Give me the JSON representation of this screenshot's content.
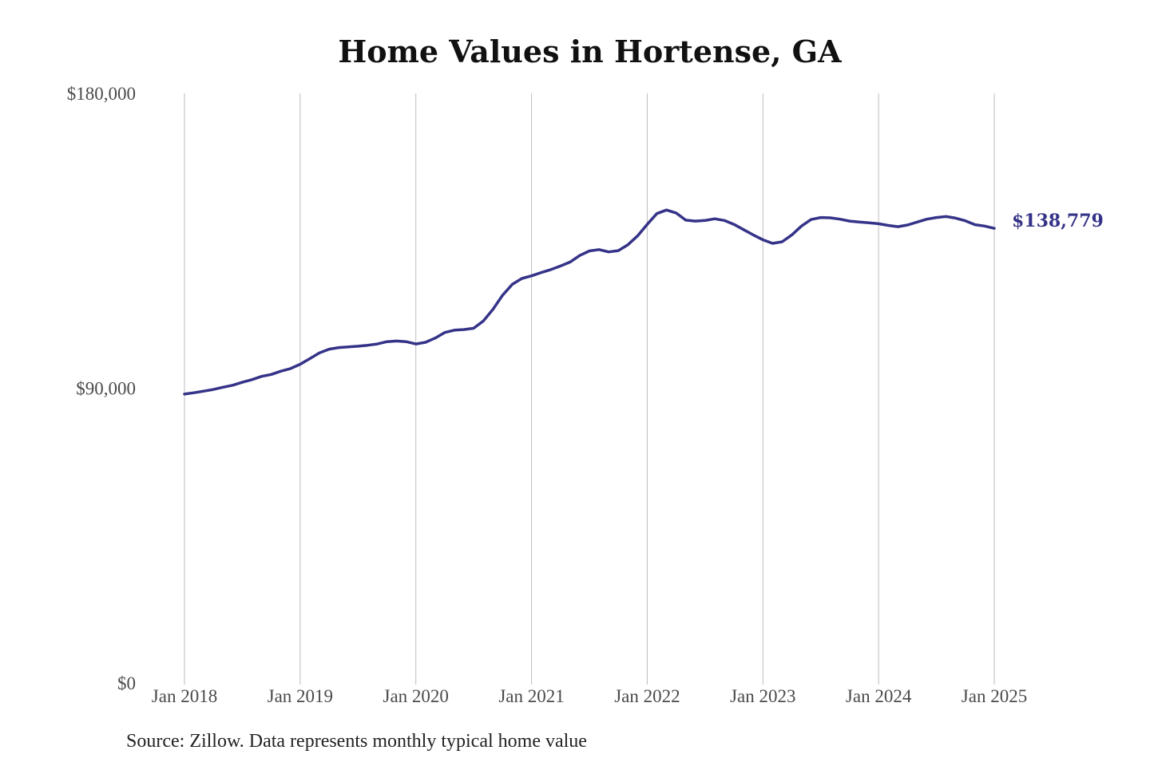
{
  "colors": {
    "line": "#353388",
    "grid": "#bdbdbd",
    "text": "#4a4a4a"
  },
  "title": "Home Values in Hortense, GA",
  "source": "Source: Zillow. Data represents monthly typical home value",
  "end_label": "$138,779",
  "chart_data": {
    "type": "line",
    "title": "Home Values in Hortense, GA",
    "xlabel": "",
    "ylabel": "",
    "x_ticks": [
      "Jan 2018",
      "Jan 2019",
      "Jan 2020",
      "Jan 2021",
      "Jan 2022",
      "Jan 2023",
      "Jan 2024",
      "Jan 2025"
    ],
    "y_ticks": [
      "$0",
      "$90,000",
      "$180,000"
    ],
    "y_tick_values": [
      0,
      90000,
      180000
    ],
    "ylim": [
      0,
      180000
    ],
    "xlim": [
      "2018-01",
      "2025-01"
    ],
    "grid": "vertical",
    "end_label": "$138,779",
    "series": [
      {
        "values": [
          [
            "2018-01",
            88200
          ],
          [
            "2018-02",
            88600
          ],
          [
            "2018-03",
            89100
          ],
          [
            "2018-04",
            89600
          ],
          [
            "2018-05",
            90300
          ],
          [
            "2018-06",
            90900
          ],
          [
            "2018-07",
            91800
          ],
          [
            "2018-08",
            92600
          ],
          [
            "2018-09",
            93600
          ],
          [
            "2018-10",
            94200
          ],
          [
            "2018-11",
            95200
          ],
          [
            "2018-12",
            96000
          ],
          [
            "2019-01",
            97300
          ],
          [
            "2019-02",
            99000
          ],
          [
            "2019-03",
            100800
          ],
          [
            "2019-04",
            101900
          ],
          [
            "2019-05",
            102400
          ],
          [
            "2019-06",
            102600
          ],
          [
            "2019-07",
            102800
          ],
          [
            "2019-08",
            103100
          ],
          [
            "2019-09",
            103500
          ],
          [
            "2019-10",
            104200
          ],
          [
            "2019-11",
            104400
          ],
          [
            "2019-12",
            104200
          ],
          [
            "2020-01",
            103500
          ],
          [
            "2020-02",
            104000
          ],
          [
            "2020-03",
            105300
          ],
          [
            "2020-04",
            107000
          ],
          [
            "2020-05",
            107700
          ],
          [
            "2020-06",
            107900
          ],
          [
            "2020-07",
            108300
          ],
          [
            "2020-08",
            110500
          ],
          [
            "2020-09",
            114100
          ],
          [
            "2020-10",
            118400
          ],
          [
            "2020-11",
            121700
          ],
          [
            "2020-12",
            123500
          ],
          [
            "2021-01",
            124300
          ],
          [
            "2021-02",
            125300
          ],
          [
            "2021-03",
            126200
          ],
          [
            "2021-04",
            127300
          ],
          [
            "2021-05",
            128500
          ],
          [
            "2021-06",
            130500
          ],
          [
            "2021-07",
            131900
          ],
          [
            "2021-08",
            132300
          ],
          [
            "2021-09",
            131600
          ],
          [
            "2021-10",
            132000
          ],
          [
            "2021-11",
            133800
          ],
          [
            "2021-12",
            136500
          ],
          [
            "2022-01",
            140000
          ],
          [
            "2022-02",
            143300
          ],
          [
            "2022-03",
            144400
          ],
          [
            "2022-04",
            143500
          ],
          [
            "2022-05",
            141300
          ],
          [
            "2022-06",
            141000
          ],
          [
            "2022-07",
            141200
          ],
          [
            "2022-08",
            141700
          ],
          [
            "2022-09",
            141200
          ],
          [
            "2022-10",
            140000
          ],
          [
            "2022-11",
            138400
          ],
          [
            "2022-12",
            136800
          ],
          [
            "2023-01",
            135300
          ],
          [
            "2023-02",
            134200
          ],
          [
            "2023-03",
            134700
          ],
          [
            "2023-04",
            136800
          ],
          [
            "2023-05",
            139500
          ],
          [
            "2023-06",
            141500
          ],
          [
            "2023-07",
            142100
          ],
          [
            "2023-08",
            142000
          ],
          [
            "2023-09",
            141600
          ],
          [
            "2023-10",
            141000
          ],
          [
            "2023-11",
            140700
          ],
          [
            "2023-12",
            140500
          ],
          [
            "2024-01",
            140200
          ],
          [
            "2024-02",
            139700
          ],
          [
            "2024-03",
            139300
          ],
          [
            "2024-04",
            139800
          ],
          [
            "2024-05",
            140700
          ],
          [
            "2024-06",
            141600
          ],
          [
            "2024-07",
            142100
          ],
          [
            "2024-08",
            142400
          ],
          [
            "2024-09",
            141900
          ],
          [
            "2024-10",
            141100
          ],
          [
            "2024-11",
            139900
          ],
          [
            "2024-12",
            139500
          ],
          [
            "2025-01",
            138779
          ]
        ]
      }
    ]
  }
}
